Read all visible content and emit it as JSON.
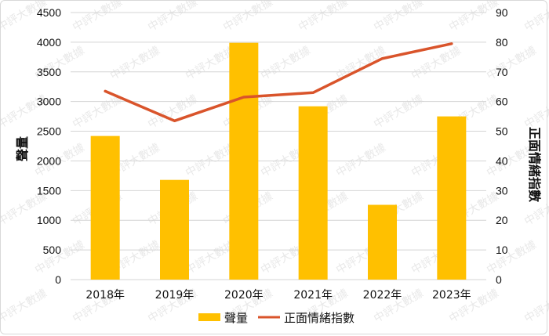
{
  "chart_data": {
    "type": "bar",
    "categories": [
      "2018年",
      "2019年",
      "2020年",
      "2021年",
      "2022年",
      "2023年"
    ],
    "series": [
      {
        "name": "聲量",
        "type": "bar",
        "axis": "left",
        "color": "#FFC000",
        "values": [
          2420,
          1680,
          3990,
          2920,
          1260,
          2750
        ]
      },
      {
        "name": "正面情緒指數",
        "type": "line",
        "axis": "right",
        "color": "#D9542B",
        "values": [
          63.5,
          53.5,
          61.5,
          63.0,
          74.5,
          79.5
        ]
      }
    ],
    "ylabel": "聲量",
    "ylabel_right": "正面情緒指數",
    "ylim": [
      0,
      4500
    ],
    "ylim_right": [
      0,
      90
    ],
    "yticks": [
      "0",
      "500",
      "1000",
      "1500",
      "2000",
      "2500",
      "3000",
      "3500",
      "4000",
      "4500"
    ],
    "yticks_right": [
      "0",
      "10",
      "20",
      "30",
      "40",
      "50",
      "60",
      "70",
      "80",
      "90"
    ],
    "grid": true,
    "legend_position": "bottom-center"
  },
  "watermark": "中評大數據"
}
